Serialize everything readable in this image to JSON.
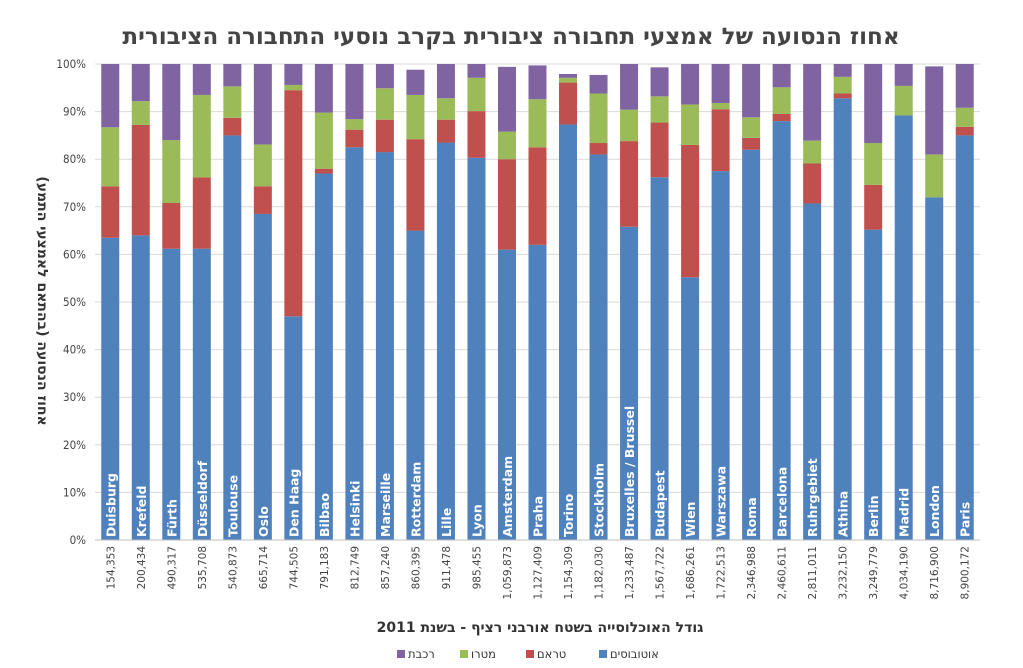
{
  "chart_data": {
    "type": "bar",
    "stacked": true,
    "title": "אחוז הנסועה של אמצעי תחבורה ציבורית בקרב נוסעי התחבורה הציבורית",
    "ylabel": "אחוז הנסועה (בהתאם לאמצעי התמע)",
    "xlabel": "גודל האוכלוסייה בשטח אורבני רציף - בשנת 2011",
    "ylim": [
      0,
      100
    ],
    "yticks": [
      "0%",
      "10%",
      "20%",
      "30%",
      "40%",
      "50%",
      "60%",
      "70%",
      "80%",
      "90%",
      "100%"
    ],
    "categories": [
      "Duisburg",
      "Krefeld",
      "Fürth",
      "Düsseldorf",
      "Toulouse",
      "Oslo",
      "Den Haag",
      "Bilbao",
      "Helsinki",
      "Marseille",
      "Rotterdam",
      "Lille",
      "Lyon",
      "Amsterdam",
      "Praha",
      "Torino",
      "Stockholm",
      "Bruxelles / Brussel",
      "Budapest",
      "Wien",
      "Warszawa",
      "Roma",
      "Barcelona",
      "Ruhrgebiet",
      "Athina",
      "Berlin",
      "Madrid",
      "London",
      "Paris"
    ],
    "populations": [
      "154,353",
      "200,434",
      "490,317",
      "535,708",
      "540,873",
      "665,714",
      "744,505",
      "791,183",
      "812,749",
      "857,240",
      "860,395",
      "911,478",
      "985,455",
      "1,059,873",
      "1,127,409",
      "1,154,309",
      "1,182,030",
      "1,233,487",
      "1,567,722",
      "1,686,261",
      "1,722,513",
      "2,346,988",
      "2,460,611",
      "2,811,011",
      "3,232,150",
      "3,249,779",
      "4,034,190",
      "8,716,900",
      "8,900,172"
    ],
    "series": [
      {
        "name": "אוטובוסים",
        "color": "#4f81bd",
        "values": [
          63.5,
          64,
          61.2,
          61.2,
          85,
          68.5,
          47,
          77,
          82.5,
          81.5,
          65,
          83.5,
          80.3,
          61,
          62,
          87.3,
          81,
          65.8,
          76.2,
          55.2,
          77.5,
          82,
          88,
          70.7,
          92.8,
          65.2,
          89.2,
          72,
          85
        ]
      },
      {
        "name": "טראם",
        "color": "#c0504d",
        "values": [
          10.8,
          23.2,
          9.6,
          15,
          3.7,
          5.8,
          47.5,
          1,
          3.7,
          6.8,
          19.2,
          4.8,
          9.8,
          19,
          20.5,
          8.8,
          2.4,
          18,
          11.5,
          27.8,
          13,
          2.5,
          1.5,
          8.4,
          1,
          9.4,
          0,
          0,
          1.8
        ]
      },
      {
        "name": "מטרו",
        "color": "#9bbb59",
        "values": [
          12.4,
          5,
          13.2,
          17.3,
          6.6,
          8.8,
          1.1,
          11.8,
          2.2,
          6.6,
          9.3,
          4.5,
          7,
          5.8,
          10.1,
          1,
          10.4,
          6.6,
          5.5,
          8.5,
          1.3,
          4.3,
          5.6,
          4.8,
          3.5,
          8.8,
          6.2,
          9,
          4
        ]
      },
      {
        "name": "רכבת",
        "color": "#8064a2",
        "values": [
          13.3,
          7.8,
          16,
          6.5,
          4.7,
          16.9,
          4.4,
          10.2,
          11.6,
          5.1,
          5.3,
          7.2,
          2.9,
          13.6,
          7.1,
          0.8,
          3.9,
          9.6,
          6.1,
          8.5,
          8.2,
          11.2,
          4.9,
          16.1,
          2.7,
          16.6,
          4.6,
          18.5,
          9.2
        ]
      }
    ],
    "legend": {
      "position": "bottom",
      "order": [
        "רכבת",
        "מטרו",
        "טראם",
        "אוטובוסים"
      ]
    }
  }
}
